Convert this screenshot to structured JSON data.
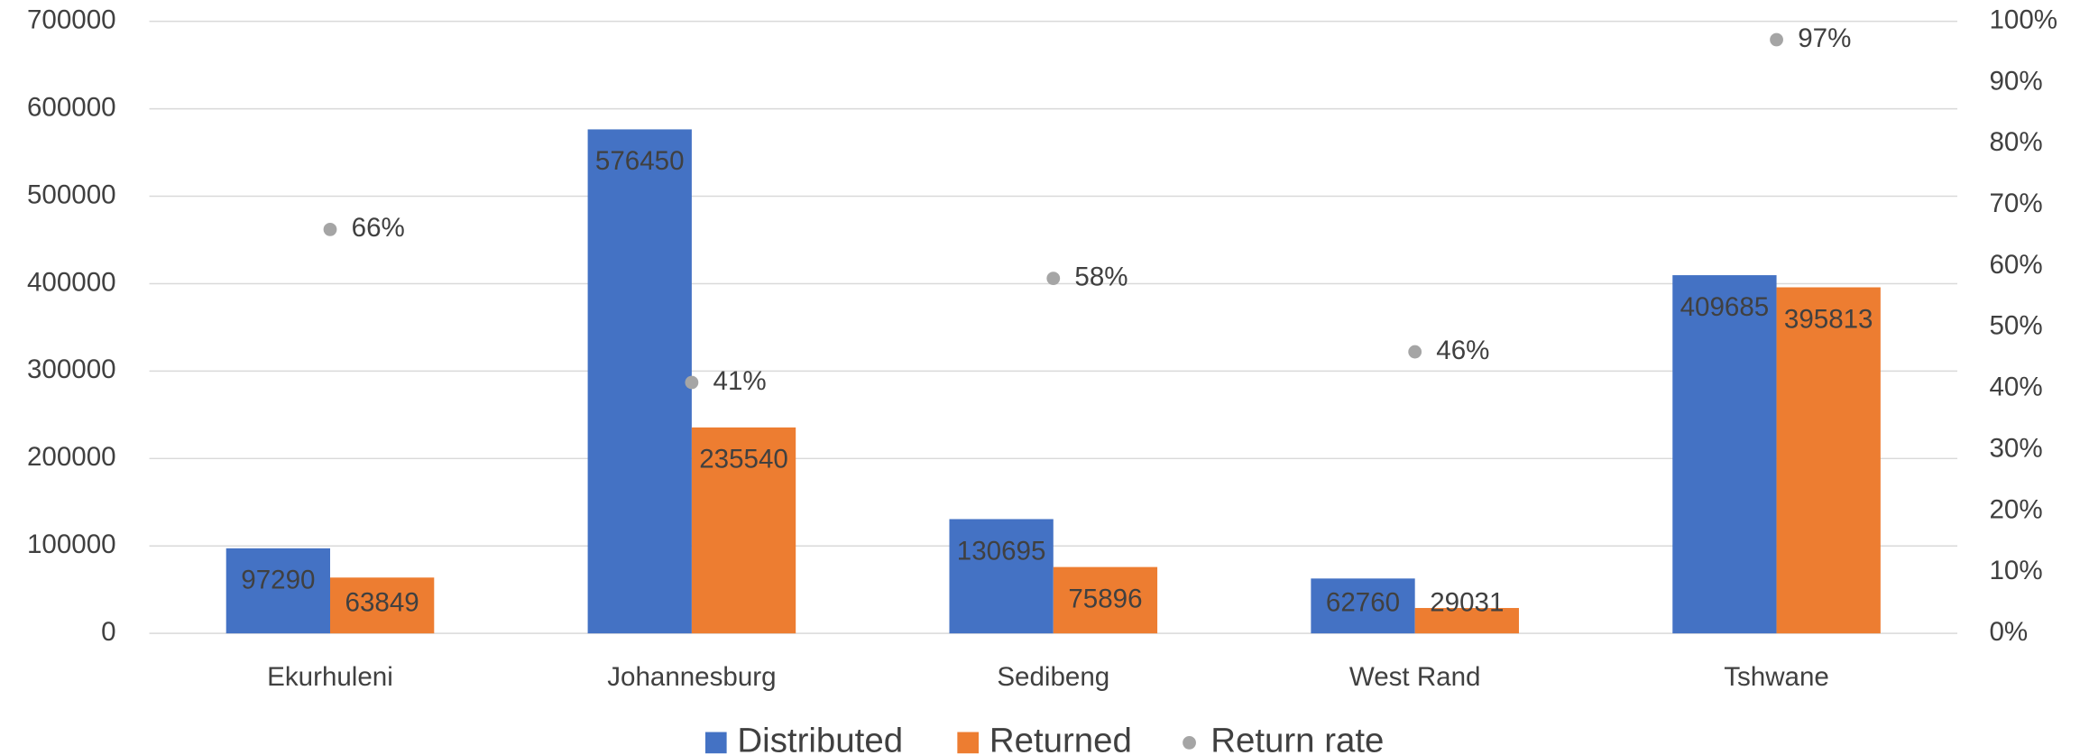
{
  "chart_data": {
    "type": "bar",
    "categories": [
      "Ekurhuleni",
      "Johannesburg",
      "Sedibeng",
      "West Rand",
      "Tshwane"
    ],
    "series": [
      {
        "name": "Distributed",
        "color": "#4472c4",
        "values": [
          97290,
          576450,
          130695,
          62760,
          409685
        ]
      },
      {
        "name": "Returned",
        "color": "#ed7d31",
        "values": [
          63849,
          235540,
          75896,
          29031,
          395813
        ]
      },
      {
        "name": "Return rate",
        "color": "#a5a5a5",
        "type": "scatter",
        "axis": "y2",
        "values": [
          66,
          41,
          58,
          46,
          97
        ],
        "value_labels": [
          "66%",
          "41%",
          "58%",
          "46%",
          "97%"
        ]
      }
    ],
    "ylim": [
      0,
      700000
    ],
    "yticks": [
      0,
      100000,
      200000,
      300000,
      400000,
      500000,
      600000,
      700000
    ],
    "y2lim": [
      0,
      100
    ],
    "y2ticks": [
      {
        "value": 0,
        "label": "0%"
      },
      {
        "value": 10,
        "label": "10%"
      },
      {
        "value": 20,
        "label": "20%"
      },
      {
        "value": 30,
        "label": "30%"
      },
      {
        "value": 40,
        "label": "40%"
      },
      {
        "value": 50,
        "label": "50%"
      },
      {
        "value": 60,
        "label": "60%"
      },
      {
        "value": 70,
        "label": "70%"
      },
      {
        "value": 80,
        "label": "80%"
      },
      {
        "value": 90,
        "label": "90%"
      },
      {
        "value": 100,
        "label": "100%"
      }
    ],
    "grid": true,
    "legend": "bottom"
  }
}
